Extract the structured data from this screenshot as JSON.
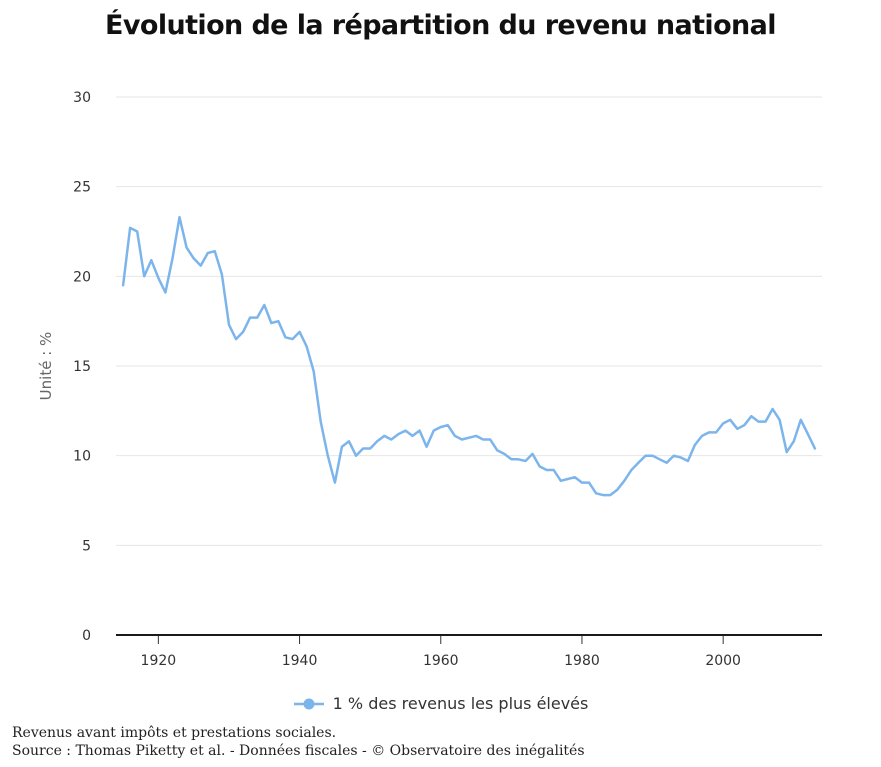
{
  "chart_data": {
    "type": "line",
    "title": "Évolution de la répartition du revenu national",
    "ylabel": "Unité : %",
    "xlabel": "",
    "ylim": [
      0,
      30
    ],
    "xlim": [
      1914,
      2014
    ],
    "yticks": [
      0,
      5,
      10,
      15,
      20,
      25,
      30
    ],
    "xticks": [
      1920,
      1940,
      1960,
      1980,
      2000
    ],
    "grid": true,
    "legend_position": "bottom",
    "series": [
      {
        "name": "1 % des revenus les plus élevés",
        "color": "#7cb5ec",
        "x": [
          1915,
          1916,
          1917,
          1918,
          1919,
          1920,
          1921,
          1922,
          1923,
          1924,
          1925,
          1926,
          1927,
          1928,
          1929,
          1930,
          1931,
          1932,
          1933,
          1934,
          1935,
          1936,
          1937,
          1938,
          1939,
          1940,
          1941,
          1942,
          1943,
          1944,
          1945,
          1946,
          1947,
          1948,
          1949,
          1950,
          1951,
          1952,
          1953,
          1954,
          1955,
          1956,
          1957,
          1958,
          1959,
          1960,
          1961,
          1962,
          1963,
          1964,
          1965,
          1966,
          1967,
          1968,
          1969,
          1970,
          1971,
          1972,
          1973,
          1974,
          1975,
          1976,
          1977,
          1978,
          1979,
          1980,
          1981,
          1982,
          1983,
          1984,
          1985,
          1986,
          1987,
          1988,
          1989,
          1990,
          1991,
          1992,
          1993,
          1994,
          1995,
          1996,
          1997,
          1998,
          1999,
          2000,
          2001,
          2002,
          2003,
          2004,
          2005,
          2006,
          2007,
          2008,
          2009,
          2010,
          2011,
          2012,
          2013
        ],
        "y": [
          19.5,
          22.7,
          22.5,
          20.0,
          20.9,
          19.9,
          19.1,
          21.0,
          23.3,
          21.6,
          21.0,
          20.6,
          21.3,
          21.4,
          20.1,
          17.3,
          16.5,
          16.9,
          17.7,
          17.7,
          18.4,
          17.4,
          17.5,
          16.6,
          16.5,
          16.9,
          16.1,
          14.7,
          11.9,
          10.0,
          8.5,
          10.5,
          10.8,
          10.0,
          10.4,
          10.4,
          10.8,
          11.1,
          10.9,
          11.2,
          11.4,
          11.1,
          11.4,
          10.5,
          11.4,
          11.6,
          11.7,
          11.1,
          10.9,
          11.0,
          11.1,
          10.9,
          10.9,
          10.3,
          10.1,
          9.8,
          9.8,
          9.7,
          10.1,
          9.4,
          9.2,
          9.2,
          8.6,
          8.7,
          8.8,
          8.5,
          8.5,
          7.9,
          7.8,
          7.8,
          8.1,
          8.6,
          9.2,
          9.6,
          10.0,
          10.0,
          9.8,
          9.6,
          10.0,
          9.9,
          9.7,
          10.6,
          11.1,
          11.3,
          11.3,
          11.8,
          12.0,
          11.5,
          11.7,
          12.2,
          11.9,
          11.9,
          12.6,
          12.0,
          10.2,
          10.8,
          12.0,
          11.2,
          10.4
        ]
      }
    ]
  },
  "footer": {
    "note": "Revenus avant impôts et prestations sociales.",
    "source": "Source : Thomas Piketty et al. - Données fiscales - © Observatoire des inégalités"
  }
}
